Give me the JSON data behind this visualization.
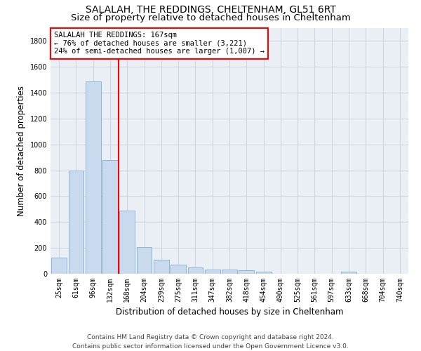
{
  "title": "SALALAH, THE REDDINGS, CHELTENHAM, GL51 6RT",
  "subtitle": "Size of property relative to detached houses in Cheltenham",
  "xlabel": "Distribution of detached houses by size in Cheltenham",
  "ylabel": "Number of detached properties",
  "footer1": "Contains HM Land Registry data © Crown copyright and database right 2024.",
  "footer2": "Contains public sector information licensed under the Open Government Licence v3.0.",
  "categories": [
    "25sqm",
    "61sqm",
    "96sqm",
    "132sqm",
    "168sqm",
    "204sqm",
    "239sqm",
    "275sqm",
    "311sqm",
    "347sqm",
    "382sqm",
    "418sqm",
    "454sqm",
    "490sqm",
    "525sqm",
    "561sqm",
    "597sqm",
    "633sqm",
    "668sqm",
    "704sqm",
    "740sqm"
  ],
  "values": [
    125,
    800,
    1490,
    880,
    490,
    205,
    110,
    70,
    48,
    35,
    30,
    25,
    18,
    0,
    0,
    0,
    0,
    15,
    0,
    0,
    0
  ],
  "bar_color": "#c9d9ee",
  "bar_edge_color": "#8ab4d8",
  "bar_linewidth": 0.7,
  "annotation_text_line1": "SALALAH THE REDDINGS: 167sqm",
  "annotation_text_line2": "← 76% of detached houses are smaller (3,221)",
  "annotation_text_line3": "24% of semi-detached houses are larger (1,007) →",
  "annotation_box_color": "red",
  "vline_color": "red",
  "ylim": [
    0,
    1900
  ],
  "yticks": [
    0,
    200,
    400,
    600,
    800,
    1000,
    1200,
    1400,
    1600,
    1800
  ],
  "grid_color": "#c8d0de",
  "background_color": "#eaeef5",
  "title_fontsize": 10,
  "subtitle_fontsize": 9.5,
  "axis_label_fontsize": 8.5,
  "tick_fontsize": 7,
  "annotation_fontsize": 7.5,
  "footer_fontsize": 6.5
}
